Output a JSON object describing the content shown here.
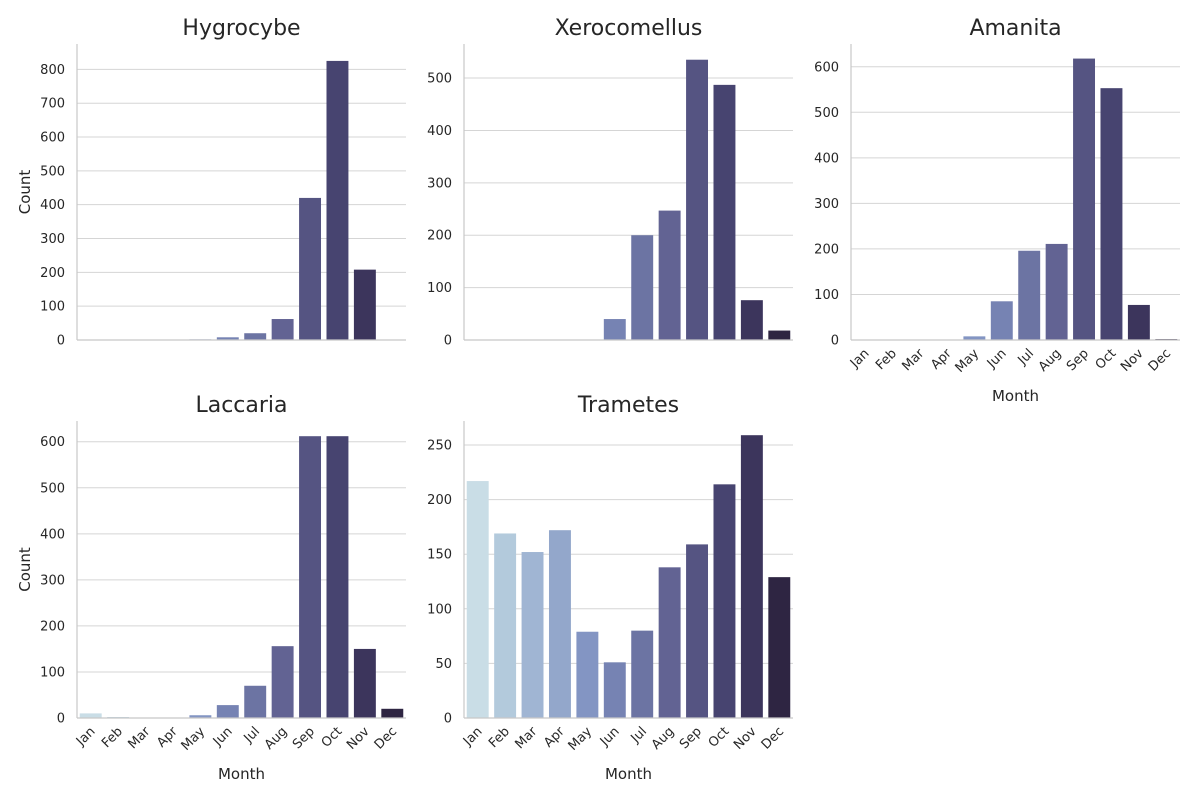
{
  "chart_data": [
    {
      "type": "bar",
      "title": "Hygrocybe",
      "xlabel": "",
      "ylabel": "Count",
      "ylim": [
        0,
        875
      ],
      "yticks": [
        0,
        100,
        200,
        300,
        400,
        500,
        600,
        700,
        800
      ],
      "show_xticklabels": false,
      "categories": [
        "Jan",
        "Feb",
        "Mar",
        "Apr",
        "May",
        "Jun",
        "Jul",
        "Aug",
        "Sep",
        "Oct",
        "Nov",
        "Dec"
      ],
      "values": [
        0,
        0,
        0,
        0,
        2,
        8,
        20,
        62,
        420,
        825,
        208,
        0
      ]
    },
    {
      "type": "bar",
      "title": "Xerocomellus",
      "xlabel": "",
      "ylabel": "",
      "ylim": [
        0,
        565
      ],
      "yticks": [
        0,
        100,
        200,
        300,
        400,
        500
      ],
      "show_xticklabels": false,
      "categories": [
        "Jan",
        "Feb",
        "Mar",
        "Apr",
        "May",
        "Jun",
        "Jul",
        "Aug",
        "Sep",
        "Oct",
        "Nov",
        "Dec"
      ],
      "values": [
        0,
        0,
        0,
        0,
        0,
        40,
        200,
        247,
        535,
        487,
        76,
        18
      ]
    },
    {
      "type": "bar",
      "title": "Amanita",
      "xlabel": "Month",
      "ylabel": "",
      "ylim": [
        0,
        650
      ],
      "yticks": [
        0,
        100,
        200,
        300,
        400,
        500,
        600
      ],
      "show_xticklabels": true,
      "categories": [
        "Jan",
        "Feb",
        "Mar",
        "Apr",
        "May",
        "Jun",
        "Jul",
        "Aug",
        "Sep",
        "Oct",
        "Nov",
        "Dec"
      ],
      "values": [
        0,
        0,
        0,
        0,
        8,
        85,
        196,
        211,
        618,
        553,
        77,
        2
      ]
    },
    {
      "type": "bar",
      "title": "Laccaria",
      "xlabel": "Month",
      "ylabel": "Count",
      "ylim": [
        0,
        645
      ],
      "yticks": [
        0,
        100,
        200,
        300,
        400,
        500,
        600
      ],
      "show_xticklabels": true,
      "categories": [
        "Jan",
        "Feb",
        "Mar",
        "Apr",
        "May",
        "Jun",
        "Jul",
        "Aug",
        "Sep",
        "Oct",
        "Nov",
        "Dec"
      ],
      "values": [
        10,
        2,
        1,
        1,
        6,
        28,
        70,
        156,
        612,
        612,
        150,
        20
      ]
    },
    {
      "type": "bar",
      "title": "Trametes",
      "xlabel": "Month",
      "ylabel": "",
      "ylim": [
        0,
        272
      ],
      "yticks": [
        0,
        50,
        100,
        150,
        200,
        250
      ],
      "show_xticklabels": true,
      "categories": [
        "Jan",
        "Feb",
        "Mar",
        "Apr",
        "May",
        "Jun",
        "Jul",
        "Aug",
        "Sep",
        "Oct",
        "Nov",
        "Dec"
      ],
      "values": [
        217,
        169,
        152,
        172,
        79,
        51,
        80,
        138,
        159,
        214,
        259,
        129
      ]
    }
  ],
  "palette": [
    "#c9dde6",
    "#b3cadc",
    "#a0b5d3",
    "#93a7cb",
    "#8395c3",
    "#7683b3",
    "#6c74a3",
    "#626393",
    "#555482",
    "#474470",
    "#3c355c",
    "#2e2542"
  ],
  "style": {
    "grid": "horizontal",
    "grid_color": "#d5d5d5",
    "axis_color": "#c8c8c8",
    "text_color": "#262626"
  }
}
